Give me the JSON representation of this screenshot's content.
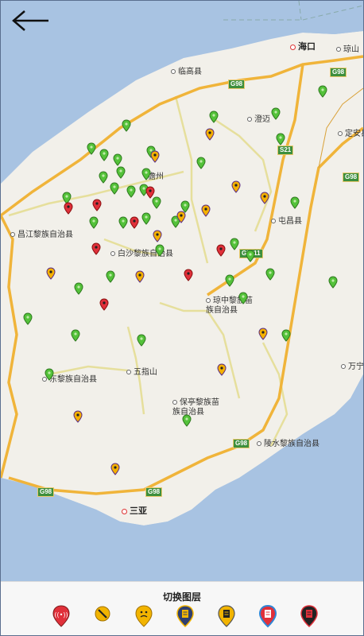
{
  "nav": {
    "back_icon": "left-arrow-icon"
  },
  "map": {
    "labels": {
      "haikou": "海口",
      "qiongshan": "琼山",
      "lingao": "临高县",
      "chengmai": "澄迈",
      "dingan": "定安县",
      "danzhou": "儋州",
      "tunchang": "屯昌县",
      "changjiang": "昌江黎族自治县",
      "baisha": "白沙黎族自治县",
      "qiongzhong": "琼中黎族苗族自治县",
      "wuzhishan": "五指山",
      "dongfang": "东黎族自治县",
      "baoting": "保亭黎族苗族自治县",
      "wanning": "万宁",
      "lingshui": "陵水黎族自治县",
      "sanya": "三亚"
    },
    "roads": {
      "g98_a": "G98",
      "g98_b": "G98",
      "g98_c": "G98",
      "g98_d": "G98",
      "g98_e": "G98",
      "g98_f": "G98",
      "g9811": "G9811",
      "s21": "S21"
    }
  },
  "footer": {
    "title": "切换图层",
    "layers": [
      {
        "icon": "alarm-layer-icon",
        "color": "#e0303a"
      },
      {
        "icon": "repair-layer-icon",
        "color": "#f2b400"
      },
      {
        "icon": "warning-face-layer-icon",
        "color": "#f2b400"
      },
      {
        "icon": "document-layer-icon",
        "color": "#2f3f6f"
      },
      {
        "icon": "file-layer-icon",
        "color": "#8a6a2a"
      },
      {
        "icon": "clipboard-layer-icon",
        "color": "#2f86d6"
      },
      {
        "icon": "report-layer-icon",
        "color": "#222222"
      }
    ]
  },
  "colors": {
    "land": "#f2f0ea",
    "sea": "#a8c3e2",
    "road_major": "#f0b43a",
    "road_minor": "#e8e2a8",
    "green_pin": "#54c23a",
    "red_pin": "#e0303a",
    "orange_pin": "#f4b000"
  }
}
